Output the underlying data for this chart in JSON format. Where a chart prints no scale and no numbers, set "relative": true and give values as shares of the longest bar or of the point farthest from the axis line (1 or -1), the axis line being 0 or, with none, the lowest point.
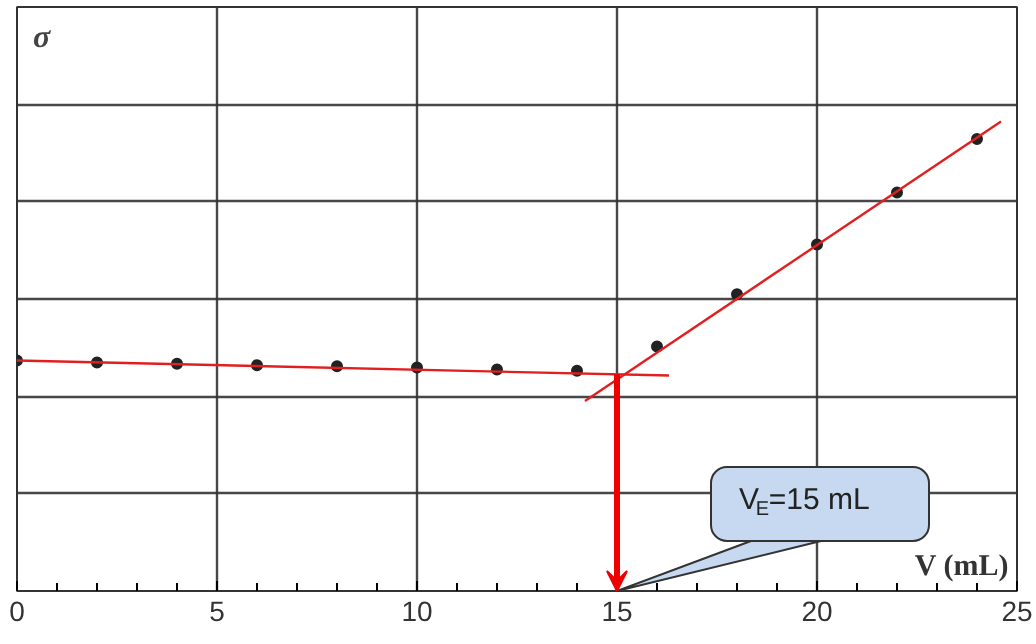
{
  "chart_data": {
    "type": "scatter",
    "relative": true,
    "xlabel": "V (mL)",
    "ylabel": "σ",
    "xlim": [
      0,
      25
    ],
    "xticks": [
      0,
      5,
      10,
      15,
      20,
      25
    ],
    "grid": true,
    "x": [
      0,
      2,
      4,
      6,
      8,
      10,
      12,
      14,
      16,
      18,
      20,
      22,
      24
    ],
    "series": [
      {
        "marker": "circle",
        "color": "#222222",
        "values": [
          0.491,
          0.487,
          0.484,
          0.481,
          0.479,
          0.476,
          0.472,
          0.469,
          0.521,
          0.632,
          0.738,
          0.849,
          0.963
        ]
      },
      {
        "type": "line",
        "marker": "none",
        "color": "#e02020",
        "x": [
          0,
          16.3
        ],
        "values": [
          0.491,
          0.459
        ]
      },
      {
        "type": "line",
        "marker": "none",
        "color": "#e02020",
        "x": [
          14.2,
          24.6
        ],
        "values": [
          0.405,
          1.0
        ]
      }
    ],
    "ref_lines": [
      {
        "axis": "x",
        "value": 15,
        "color": "#ee0000"
      }
    ],
    "annotations": [
      {
        "text": "V$_{E}$=15 mL",
        "x": 15,
        "y": 0
      }
    ]
  }
}
